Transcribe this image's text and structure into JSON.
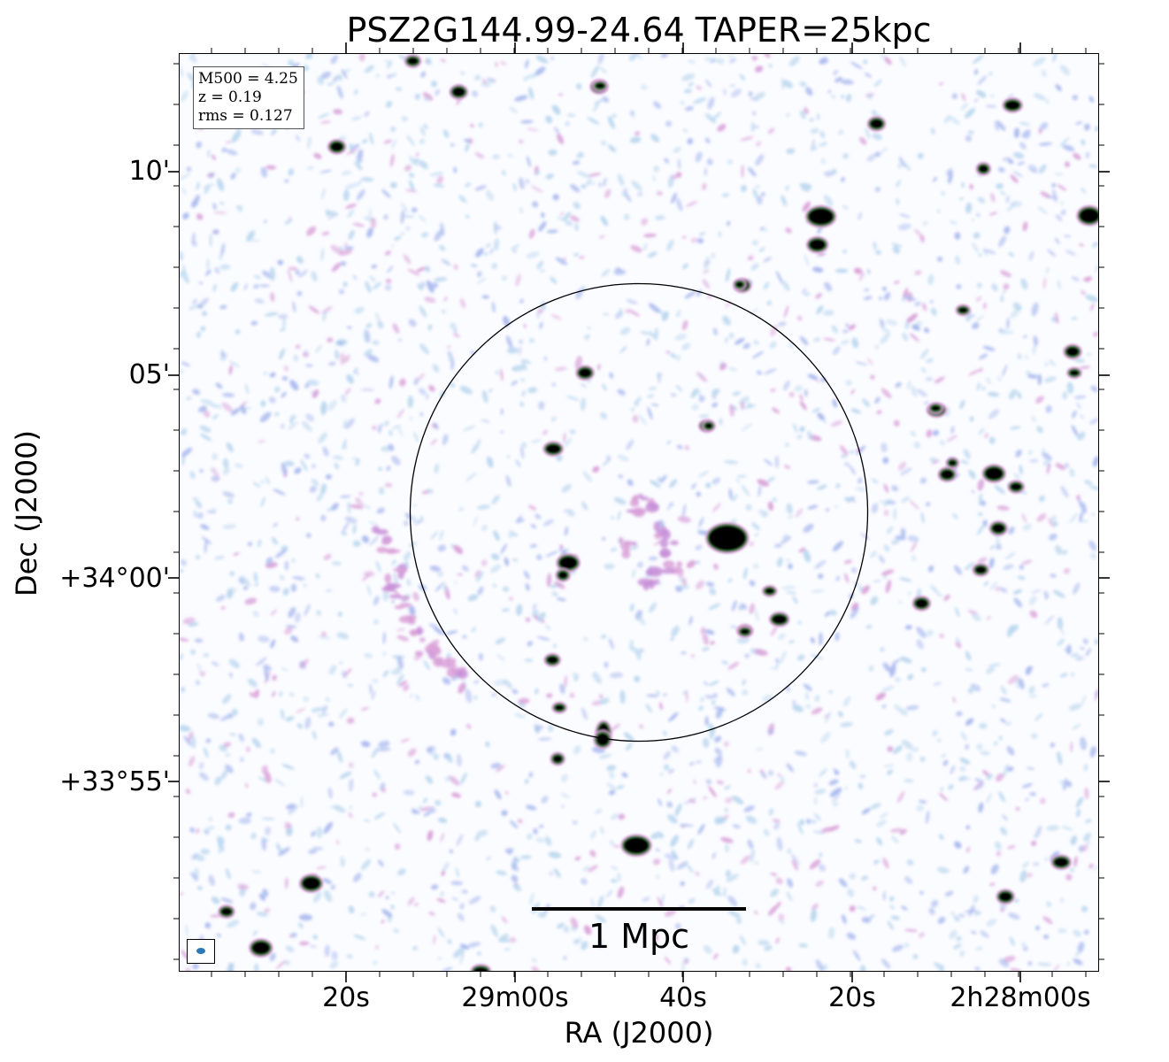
{
  "title": "PSZ2G144.99-24.64 TAPER=25kpc",
  "info": {
    "mass": "M500 = 4.25",
    "redshift": "z = 0.19",
    "rms": "rms = 0.127"
  },
  "scalebar": {
    "label": "1 Mpc"
  },
  "axes": {
    "xlabel": "RA (J2000)",
    "ylabel": "Dec (J2000)",
    "xticks": [
      "20s",
      "29m00s",
      "40s",
      "20s",
      "2h28m00s"
    ],
    "yticks": [
      "10'",
      "05'",
      "+34°00'",
      "+33°55'"
    ]
  },
  "colors": {
    "noise_light": "#b9d6ee",
    "noise_blue": "#a8b8ee",
    "noise_pink": "#d9a0d8",
    "source_core": "#000000",
    "source_ring": "#3a7a3a",
    "circle": "#000000",
    "beam": "#2a7ab8"
  }
}
